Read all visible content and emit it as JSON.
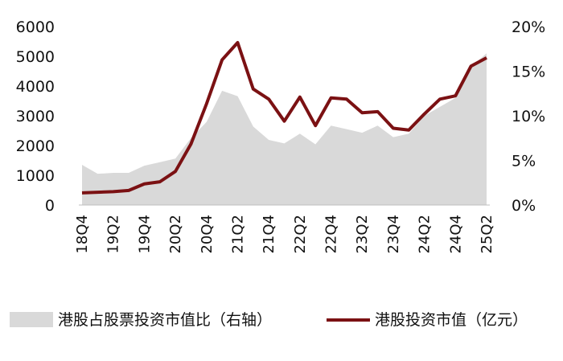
{
  "chart_data": {
    "type": "area+line",
    "title": "",
    "categories": [
      "18Q4",
      "19Q1",
      "19Q2",
      "19Q3",
      "19Q4",
      "20Q1",
      "20Q2",
      "20Q3",
      "20Q4",
      "21Q1",
      "21Q2",
      "21Q3",
      "21Q4",
      "22Q1",
      "22Q2",
      "22Q3",
      "22Q4",
      "23Q1",
      "23Q2",
      "23Q3",
      "23Q4",
      "24Q1",
      "24Q2",
      "24Q3",
      "24Q4",
      "25Q1",
      "25Q2"
    ],
    "x_tick_labels": [
      "18Q4",
      "19Q2",
      "19Q4",
      "20Q2",
      "20Q4",
      "21Q2",
      "21Q4",
      "22Q2",
      "22Q4",
      "23Q2",
      "23Q4",
      "24Q2",
      "24Q4",
      "25Q2"
    ],
    "left_axis": {
      "ticks": [
        "0",
        "1000",
        "2000",
        "3000",
        "4000",
        "5000",
        "6000"
      ],
      "ylim": [
        0,
        6000
      ]
    },
    "right_axis": {
      "ticks": [
        "0%",
        "5%",
        "10%",
        "15%",
        "20%"
      ],
      "ylim": [
        0,
        20
      ]
    },
    "series": [
      {
        "name": "港股占股票投资市值比（右轴）",
        "type": "area",
        "axis": "right",
        "color": "#d9d9d9",
        "values": [
          4.5,
          3.5,
          3.6,
          3.6,
          4.4,
          4.8,
          5.2,
          7.5,
          9.3,
          12.8,
          12.2,
          8.8,
          7.3,
          6.9,
          8.0,
          6.8,
          8.9,
          8.5,
          8.1,
          8.9,
          7.6,
          8.0,
          10.0,
          11.0,
          12.0,
          15.5,
          17.0
        ]
      },
      {
        "name": "港股投资市值（亿元）",
        "type": "line",
        "axis": "left",
        "color": "#7b1113",
        "values": [
          410,
          430,
          450,
          490,
          710,
          780,
          1130,
          2050,
          3400,
          4880,
          5460,
          3900,
          3560,
          2820,
          3630,
          2670,
          3600,
          3560,
          3100,
          3140,
          2580,
          2520,
          3060,
          3560,
          3670,
          4670,
          4950
        ]
      }
    ],
    "legend": {
      "placement": "bottom",
      "items": [
        "港股占股票投资市值比（右轴）",
        "港股投资市值（亿元）"
      ]
    },
    "grid": false
  }
}
